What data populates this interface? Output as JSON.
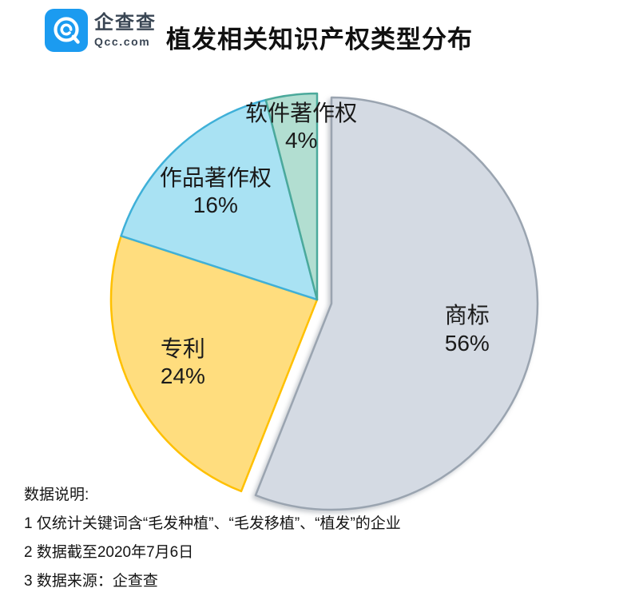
{
  "header": {
    "brand_cn": "企查查",
    "brand_en": "Qcc.com",
    "brand_color": "#1b9bf0",
    "title": "植发相关知识产权类型分布"
  },
  "chart_data": {
    "type": "pie",
    "title": "植发相关知识产权类型分布",
    "direction": "clockwise",
    "start_angle_deg": 0,
    "legend_position": "none",
    "labels_on_chart": true,
    "slices": [
      {
        "label": "商标",
        "value_pct": 56,
        "fill": "#d4dae3",
        "stroke": "#9aa4b0",
        "exploded": true
      },
      {
        "label": "专利",
        "value_pct": 24,
        "fill": "#ffdd7e",
        "stroke": "#ffc000",
        "exploded": false
      },
      {
        "label": "作品著作权",
        "value_pct": 16,
        "fill": "#a9e2f3",
        "stroke": "#3fb0d8",
        "exploded": false
      },
      {
        "label": "软件著作权",
        "value_pct": 4,
        "fill": "#b2ded1",
        "stroke": "#4ba99b",
        "exploded": false
      }
    ]
  },
  "footer": {
    "heading": "数据说明:",
    "notes": [
      "1 仅统计关键词含“毛发种植”、“毛发移植”、“植发”的企业",
      "2 数据截至2020年7月6日",
      "3 数据来源：企查查"
    ]
  }
}
